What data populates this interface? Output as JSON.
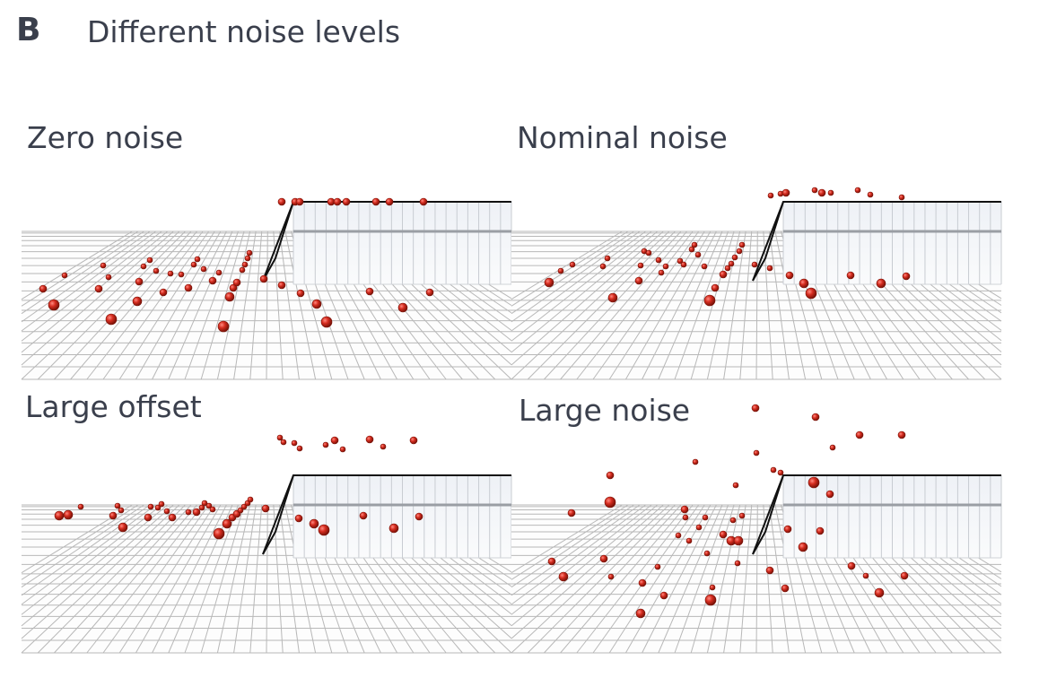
{
  "panel_label": "B",
  "heading": "Different noise levels",
  "subplots": [
    {
      "title": "Zero noise"
    },
    {
      "title": "Nominal noise"
    },
    {
      "title": "Large offset"
    },
    {
      "title": "Large noise"
    }
  ],
  "colors": {
    "text": "#3a3f4c",
    "grid": "#b8b8b8",
    "marker": "#d62d20",
    "marker_edge": "#7a1208",
    "wall_edge": "#111111"
  }
}
